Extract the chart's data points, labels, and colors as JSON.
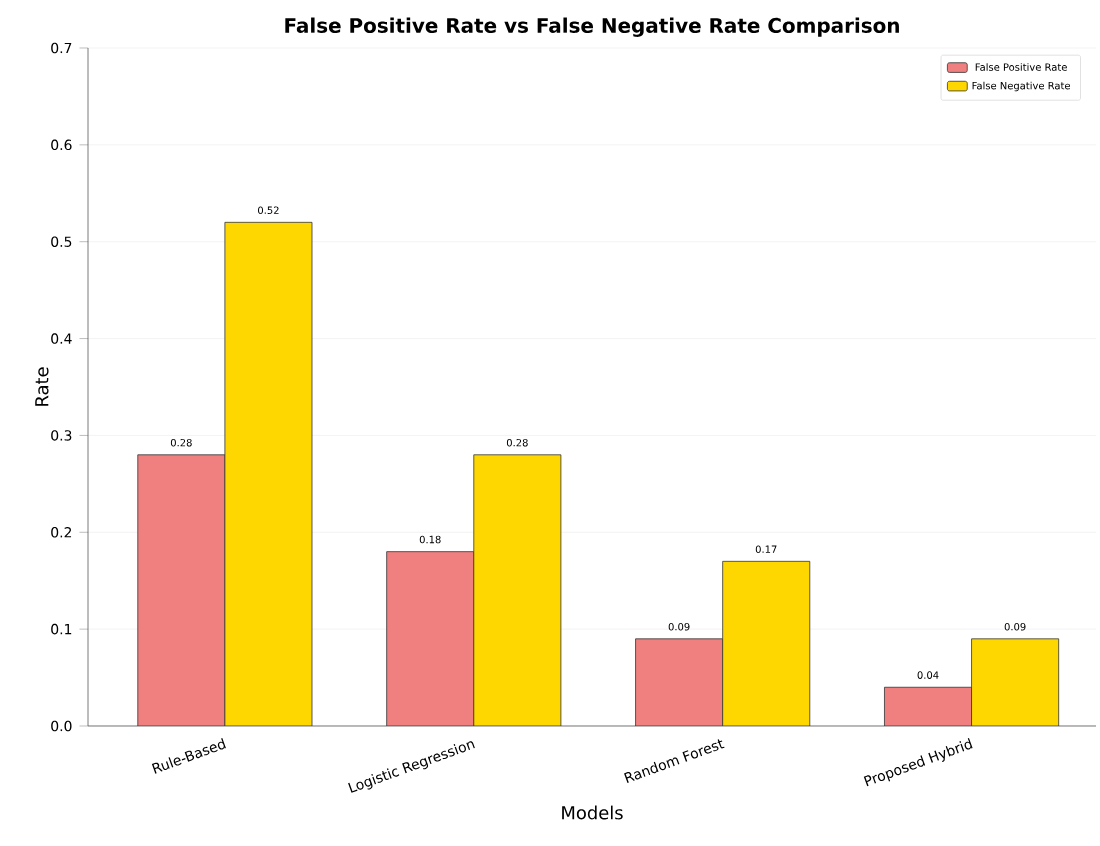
{
  "chart_data": {
    "type": "bar",
    "title": "False Positive Rate vs False Negative Rate Comparison",
    "xlabel": "Models",
    "ylabel": "Rate",
    "categories": [
      "Rule-Based",
      "Logistic Regression",
      "Random Forest",
      "Proposed Hybrid"
    ],
    "series": [
      {
        "name": "False Positive Rate",
        "color": "#f08080",
        "values": [
          0.28,
          0.18,
          0.09,
          0.04
        ]
      },
      {
        "name": "False Negative Rate",
        "color": "#ffd700",
        "values": [
          0.52,
          0.28,
          0.17,
          0.09
        ]
      }
    ],
    "ylim": [
      0,
      0.7
    ],
    "yticks": [
      {
        "value": 0,
        "label": "0.0"
      },
      0.1,
      0.2,
      0.3,
      0.4,
      0.5,
      0.6,
      0.7
    ],
    "grid": "y",
    "legend": "top right",
    "data_labels": true
  }
}
